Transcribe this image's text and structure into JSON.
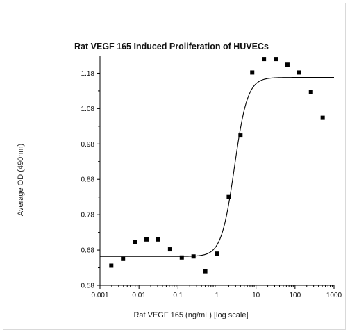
{
  "chart_data": {
    "type": "scatter",
    "title": "Rat VEGF 165 Induced Proliferation of HUVECs",
    "xlabel": "Rat VEGF 165 (ng/mL) [log scale]",
    "ylabel": "Average OD (490nm)",
    "xscale": "log",
    "xlim": [
      0.001,
      1000
    ],
    "ylim": [
      0.58,
      1.23
    ],
    "x_ticks": [
      0.001,
      0.01,
      0.1,
      1,
      10,
      100,
      1000
    ],
    "x_tick_labels": [
      "0.001",
      "0.01",
      "0.1",
      "1",
      "10",
      "100",
      "1000"
    ],
    "y_ticks": [
      0.58,
      0.68,
      0.78,
      0.88,
      0.98,
      1.08,
      1.18
    ],
    "y_tick_labels": [
      "0.58",
      "0.68",
      "0.78",
      "0.88",
      "0.98",
      "1.08",
      "1.18"
    ],
    "grid": false,
    "series": [
      {
        "kind": "points",
        "x": [
          0.00195,
          0.0039,
          0.0078,
          0.0156,
          0.03125,
          0.0625,
          0.125,
          0.25,
          0.5,
          1,
          2,
          4,
          8,
          16,
          32,
          64,
          128,
          256,
          512
        ],
        "y": [
          0.636,
          0.655,
          0.703,
          0.71,
          0.71,
          0.682,
          0.659,
          0.662,
          0.62,
          0.67,
          0.83,
          1.004,
          1.182,
          1.22,
          1.22,
          1.204,
          1.182,
          1.127,
          1.054
        ]
      },
      {
        "kind": "fit",
        "model": "4-parameter logistic",
        "bottom": 0.662,
        "top": 1.168,
        "ec50": 2.8,
        "hill": 2.6
      }
    ],
    "colors": {
      "points": "#000000",
      "fit_line": "#000000",
      "axes": "#000000"
    }
  }
}
